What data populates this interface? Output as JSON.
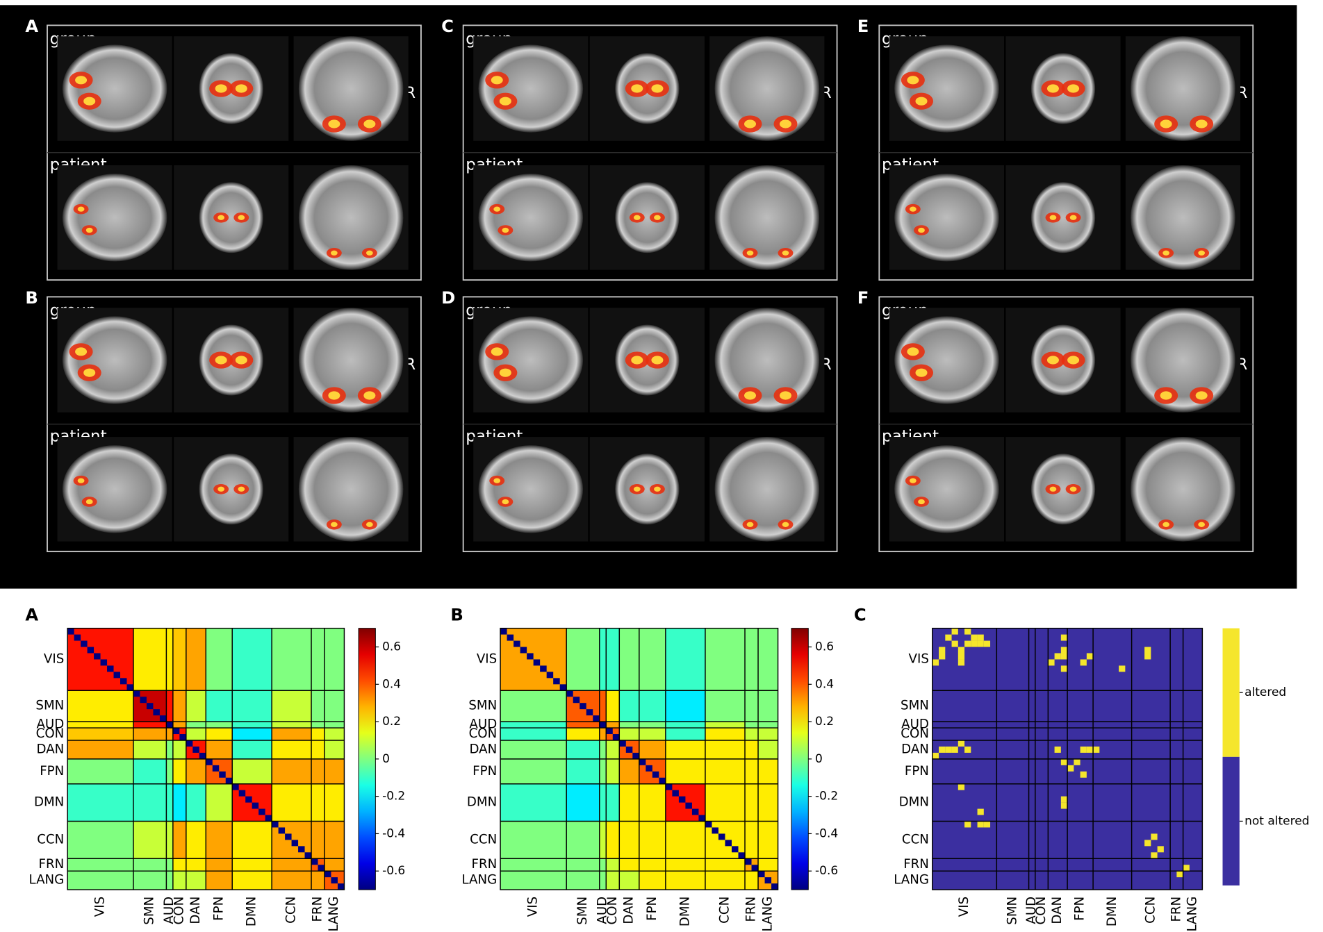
{
  "brain_panels": [
    {
      "label": "A",
      "group": "group",
      "patient": "patient",
      "orientation": "R"
    },
    {
      "label": "B",
      "group": "group",
      "patient": "patient",
      "orientation": "R"
    },
    {
      "label": "C",
      "group": "group",
      "patient": "patient",
      "orientation": "R"
    },
    {
      "label": "D",
      "group": "group",
      "patient": "patient",
      "orientation": "R"
    },
    {
      "label": "E",
      "group": "group",
      "patient": "patient",
      "orientation": "R"
    },
    {
      "label": "F",
      "group": "group",
      "patient": "patient",
      "orientation": "R"
    }
  ],
  "chart_data": [
    {
      "type": "heatmap",
      "label": "A",
      "networks": [
        "VIS",
        "SMN",
        "AUD",
        "CON",
        "DAN",
        "FPN",
        "DMN",
        "CCN",
        "FRN",
        "LANG"
      ],
      "sizes": [
        10,
        5,
        1,
        2,
        3,
        4,
        6,
        6,
        2,
        3
      ],
      "matrix": [
        [
          0.5,
          0.2,
          0.2,
          0.25,
          0.3,
          0.0,
          -0.1,
          0.0,
          0.0,
          0.0
        ],
        [
          0.2,
          0.6,
          0.5,
          0.3,
          0.1,
          -0.1,
          -0.1,
          0.1,
          0.0,
          0.0
        ],
        [
          0.2,
          0.5,
          0.6,
          0.3,
          0.0,
          0.0,
          -0.1,
          0.1,
          0.0,
          0.0
        ],
        [
          0.25,
          0.3,
          0.3,
          0.5,
          0.1,
          0.2,
          -0.2,
          0.3,
          0.2,
          0.1
        ],
        [
          0.3,
          0.1,
          0.0,
          0.1,
          0.5,
          0.3,
          -0.1,
          0.2,
          0.2,
          0.1
        ],
        [
          0.0,
          -0.1,
          0.0,
          0.2,
          0.3,
          0.4,
          0.1,
          0.3,
          0.3,
          0.3
        ],
        [
          -0.1,
          -0.1,
          -0.1,
          -0.2,
          -0.1,
          0.1,
          0.5,
          0.2,
          0.2,
          0.2
        ],
        [
          0.0,
          0.1,
          0.1,
          0.3,
          0.2,
          0.3,
          0.2,
          0.3,
          0.3,
          0.3
        ],
        [
          0.0,
          0.0,
          0.0,
          0.2,
          0.2,
          0.3,
          0.2,
          0.3,
          0.4,
          0.3
        ],
        [
          0.0,
          0.0,
          0.0,
          0.1,
          0.1,
          0.3,
          0.2,
          0.3,
          0.3,
          0.4
        ]
      ],
      "diagonal": -0.7,
      "colormap": "jet",
      "zlim": [
        -0.7,
        0.7
      ],
      "zticks": [
        -0.6,
        -0.4,
        -0.2,
        0,
        0.2,
        0.4,
        0.6
      ]
    },
    {
      "type": "heatmap",
      "label": "B",
      "networks": [
        "VIS",
        "SMN",
        "AUD",
        "CON",
        "DAN",
        "FPN",
        "DMN",
        "CCN",
        "FRN",
        "LANG"
      ],
      "sizes": [
        10,
        5,
        1,
        2,
        3,
        4,
        6,
        6,
        2,
        3
      ],
      "matrix": [
        [
          0.3,
          0.0,
          -0.1,
          -0.1,
          0.0,
          0.0,
          -0.1,
          0.0,
          0.0,
          0.0
        ],
        [
          0.0,
          0.4,
          0.4,
          0.2,
          -0.1,
          -0.1,
          -0.2,
          0.0,
          0.0,
          0.0
        ],
        [
          -0.1,
          0.4,
          0.5,
          0.3,
          0.0,
          0.0,
          -0.1,
          0.1,
          0.0,
          0.0
        ],
        [
          -0.1,
          0.2,
          0.3,
          0.4,
          0.1,
          0.1,
          -0.1,
          0.2,
          0.1,
          0.1
        ],
        [
          0.0,
          -0.1,
          0.0,
          0.1,
          0.4,
          0.3,
          0.2,
          0.2,
          0.2,
          0.1
        ],
        [
          0.0,
          -0.1,
          0.0,
          0.1,
          0.3,
          0.4,
          0.2,
          0.2,
          0.2,
          0.2
        ],
        [
          -0.1,
          -0.2,
          -0.1,
          -0.1,
          0.2,
          0.2,
          0.5,
          0.2,
          0.2,
          0.2
        ],
        [
          0.0,
          0.0,
          0.1,
          0.2,
          0.2,
          0.2,
          0.2,
          0.2,
          0.2,
          0.2
        ],
        [
          0.0,
          0.0,
          0.0,
          0.1,
          0.2,
          0.2,
          0.2,
          0.2,
          0.3,
          0.2
        ],
        [
          0.0,
          0.0,
          0.0,
          0.1,
          0.1,
          0.2,
          0.2,
          0.2,
          0.2,
          0.3
        ]
      ],
      "diagonal": -0.7,
      "colormap": "jet",
      "zlim": [
        -0.7,
        0.7
      ],
      "zticks": [
        -0.6,
        -0.4,
        -0.2,
        0,
        0.2,
        0.4,
        0.6
      ]
    },
    {
      "type": "binary_matrix",
      "label": "C",
      "networks": [
        "VIS",
        "SMN",
        "AUD",
        "CON",
        "DAN",
        "FPN",
        "DMN",
        "CCN",
        "FRN",
        "LANG"
      ],
      "sizes": [
        10,
        5,
        1,
        2,
        3,
        4,
        6,
        6,
        2,
        3
      ],
      "altered_cells": [
        [
          0,
          3
        ],
        [
          0,
          5
        ],
        [
          1,
          2
        ],
        [
          1,
          6
        ],
        [
          1,
          7
        ],
        [
          2,
          3
        ],
        [
          2,
          5
        ],
        [
          2,
          6
        ],
        [
          2,
          7
        ],
        [
          2,
          8
        ],
        [
          3,
          1
        ],
        [
          3,
          4
        ],
        [
          4,
          1
        ],
        [
          4,
          4
        ],
        [
          5,
          0
        ],
        [
          5,
          4
        ],
        [
          1,
          20
        ],
        [
          3,
          20
        ],
        [
          4,
          19
        ],
        [
          4,
          20
        ],
        [
          5,
          18
        ],
        [
          6,
          20
        ],
        [
          4,
          24
        ],
        [
          5,
          23
        ],
        [
          3,
          33
        ],
        [
          4,
          33
        ],
        [
          6,
          29
        ],
        [
          18,
          4
        ],
        [
          19,
          1
        ],
        [
          19,
          2
        ],
        [
          19,
          3
        ],
        [
          19,
          5
        ],
        [
          19,
          19
        ],
        [
          19,
          23
        ],
        [
          19,
          24
        ],
        [
          19,
          25
        ],
        [
          20,
          0
        ],
        [
          21,
          20
        ],
        [
          21,
          22
        ],
        [
          22,
          21
        ],
        [
          23,
          23
        ],
        [
          25,
          4
        ],
        [
          27,
          20
        ],
        [
          28,
          20
        ],
        [
          29,
          7
        ],
        [
          31,
          5
        ],
        [
          31,
          7
        ],
        [
          31,
          8
        ],
        [
          33,
          34
        ],
        [
          34,
          33
        ],
        [
          35,
          35
        ],
        [
          36,
          34
        ],
        [
          38,
          39
        ],
        [
          39,
          38
        ]
      ],
      "categories": [
        "altered",
        "not altered"
      ],
      "colors": [
        "#f5e62c",
        "#3b2fa0"
      ]
    }
  ]
}
